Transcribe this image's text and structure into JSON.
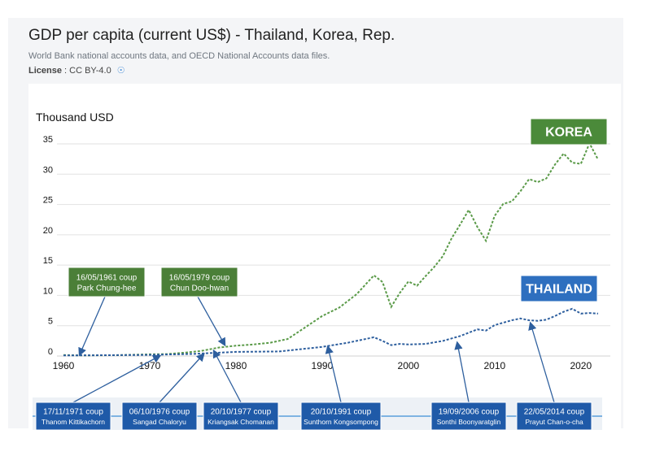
{
  "header": {
    "title": "GDP per capita (current US$) - Thailand, Korea, Rep.",
    "source": "World Bank national accounts data, and OECD National Accounts data files.",
    "license_label": "License",
    "license_value": ": CC BY-4.0",
    "info_icon": "info-circle-icon"
  },
  "chart_data": {
    "type": "line",
    "ylabel": "Thousand USD",
    "ylim": [
      0,
      35
    ],
    "yticks": [
      0,
      5,
      10,
      15,
      20,
      25,
      30,
      35
    ],
    "xlim": [
      1960,
      2022
    ],
    "xticks": [
      1960,
      1970,
      1980,
      1990,
      2000,
      2010,
      2020
    ],
    "series": [
      {
        "name": "KOREA",
        "color": "#5a9a48",
        "x": [
          1960,
          1962,
          1964,
          1966,
          1968,
          1970,
          1972,
          1974,
          1976,
          1978,
          1980,
          1982,
          1984,
          1986,
          1988,
          1990,
          1992,
          1994,
          1996,
          1997,
          1998,
          1999,
          2000,
          2001,
          2002,
          2003,
          2004,
          2005,
          2006,
          2007,
          2008,
          2009,
          2010,
          2011,
          2012,
          2013,
          2014,
          2015,
          2016,
          2017,
          2018,
          2019,
          2020,
          2021,
          2022
        ],
        "values": [
          0.16,
          0.1,
          0.12,
          0.13,
          0.2,
          0.28,
          0.32,
          0.55,
          0.85,
          1.4,
          1.7,
          1.9,
          2.2,
          2.8,
          4.7,
          6.6,
          8.0,
          10.2,
          13.3,
          12.2,
          8.1,
          10.4,
          12.3,
          11.6,
          13.2,
          14.7,
          16.5,
          19.4,
          21.7,
          24.1,
          21.3,
          19.0,
          23.1,
          25.1,
          25.5,
          27.2,
          29.2,
          28.7,
          29.3,
          31.6,
          33.4,
          31.9,
          31.7,
          35.1,
          32.4
        ]
      },
      {
        "name": "THAILAND",
        "color": "#2e5f9e",
        "x": [
          1960,
          1965,
          1970,
          1975,
          1980,
          1985,
          1990,
          1993,
          1996,
          1997,
          1998,
          1999,
          2000,
          2002,
          2004,
          2006,
          2008,
          2009,
          2010,
          2011,
          2012,
          2013,
          2014,
          2015,
          2016,
          2017,
          2018,
          2019,
          2020,
          2021,
          2022
        ],
        "values": [
          0.1,
          0.14,
          0.19,
          0.35,
          0.68,
          0.75,
          1.5,
          2.2,
          3.1,
          2.5,
          1.8,
          2.0,
          1.9,
          2.0,
          2.5,
          3.3,
          4.4,
          4.2,
          5.1,
          5.5,
          5.9,
          6.2,
          5.9,
          5.8,
          6.0,
          6.6,
          7.3,
          7.8,
          7.0,
          7.1,
          7.0
        ]
      }
    ],
    "legend": [
      {
        "text": "KOREA",
        "fill": "#4b8a3a"
      },
      {
        "text": "THAILAND",
        "fill": "#2e6fbf"
      }
    ],
    "annotations_top": [
      {
        "line1": "16/05/1961 coup",
        "line2": "Park Chung-hee",
        "year": 1961,
        "fill": "#4b7f38"
      },
      {
        "line1": "16/05/1979  coup",
        "line2": "Chun Doo-hwan",
        "year": 1979,
        "fill": "#4b7f38"
      }
    ],
    "annotations_bottom": [
      {
        "line1": "17/11/1971 coup",
        "line2": "Thanom Kittikachorn",
        "year": 1971,
        "fill": "#1f5aa8"
      },
      {
        "line1": "06/10/1976 coup",
        "line2": "Sangad Chaloryu",
        "year": 1976,
        "fill": "#1f5aa8"
      },
      {
        "line1": "20/10/1977 coup",
        "line2": "Kriangsak Chomanan",
        "year": 1977,
        "fill": "#1f5aa8"
      },
      {
        "line1": "20/10/1991 coup",
        "line2": "Sunthorn Kongsompong",
        "year": 1991,
        "fill": "#1f5aa8"
      },
      {
        "line1": "19/09/2006  coup",
        "line2": "Sonthi Boonyaratglin",
        "year": 2006,
        "fill": "#1f5aa8"
      },
      {
        "line1": "22/05/2014  coup",
        "line2": "Prayut Chan-o-cha",
        "year": 2014,
        "fill": "#1f5aa8"
      }
    ]
  }
}
